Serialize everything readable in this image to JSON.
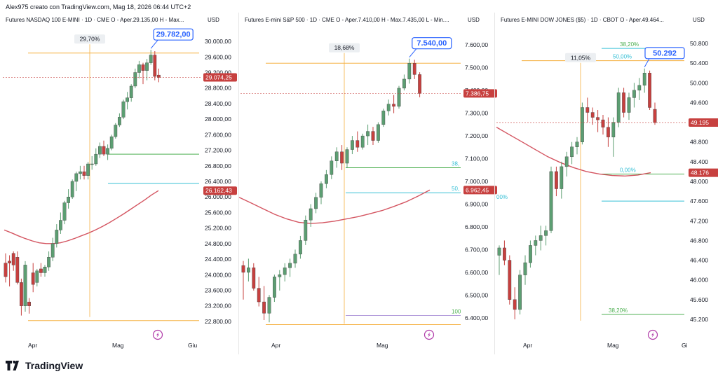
{
  "header": {
    "creator": "Alex975 creato con TradingView.com, Mag 18, 2026 06:44 UTC+2"
  },
  "brand": {
    "name": "TradingView"
  },
  "colors": {
    "up": "#5c9e72",
    "down": "#c7403f",
    "ma": "#d45561",
    "fib_green": "#4caf50",
    "fib_cyan": "#38c0d6",
    "orange": "#f5b041",
    "tag": "#2962ff"
  },
  "panels": [
    {
      "title": "Futures NASDAQ 100 E-MINI · 1D · CME  O - Aper.29.135,00  H - Max...",
      "currency": "USD",
      "yticks": [
        "30.000,00",
        "29.600,00",
        "29.200,00",
        "28.800,00",
        "28.400,00",
        "28.000,00",
        "27.600,00",
        "27.200,00",
        "26.800,00",
        "26.400,00",
        "26.000,00",
        "25.600,00",
        "25.200,00",
        "24.800,00",
        "24.400,00",
        "24.000,00",
        "23.600,00",
        "23.200,00",
        "22.800,00"
      ],
      "xticks": [
        "Apr",
        "Mag",
        "Giu"
      ],
      "range_label": "29,70%",
      "peak_label": "29.782,00",
      "price_tag": "29.074,25",
      "ma_tag": "26.162,43",
      "fib_labels": [],
      "icon": "lightning-icon"
    },
    {
      "title": "Futures E-mini S&P 500 · 1D · CME  O - Aper.7.410,00  H - Max.7.435,00  L - Min....",
      "currency": "USD",
      "yticks": [
        "7.600,00",
        "7.500,00",
        "7.400,00",
        "7.300,00",
        "7.200,00",
        "7.100,00",
        "7.000,00",
        "6.900,00",
        "6.800,00",
        "6.700,00",
        "6.600,00",
        "6.500,00",
        "6.400,00"
      ],
      "xticks": [
        "Apr",
        "Mag"
      ],
      "range_label": "18,68%",
      "peak_label": "7.540,00",
      "price_tag": "7.386,75",
      "ma_tag": "6.962,45",
      "fib_labels": [
        "38,",
        "50,",
        "100"
      ],
      "icon": "lightning-icon"
    },
    {
      "title": "Futures E-MINI DOW JONES ($5) · 1D · CBOT  O - Aper.49.464...",
      "currency": "USD",
      "yticks": [
        "50.800",
        "50.400",
        "50.000",
        "49.600",
        "49.200",
        "48.800",
        "48.400",
        "48.000",
        "47.600",
        "47.200",
        "46.800",
        "46.400",
        "46.000",
        "45.600",
        "45.200"
      ],
      "xticks": [
        "Apr",
        "Mag",
        "Gi"
      ],
      "range_label": "11,05%",
      "peak_label": "50.292",
      "price_tag": "49.195",
      "ma_tag": "48.176",
      "fib_labels": [
        "0,00%",
        "00%",
        "38,20%",
        "50,00%",
        "38,20%"
      ],
      "icon": "lightning-icon"
    }
  ],
  "chart_data": [
    {
      "type": "candlestick",
      "title": "Futures NASDAQ 100 E-MINI · 1D · CME",
      "ylim": [
        22600,
        30200
      ],
      "xlabels": [
        "Apr",
        "Mag",
        "Giu"
      ],
      "ohlc": [
        [
          24300,
          24550,
          23800,
          23950
        ],
        [
          24350,
          24500,
          23700,
          24300
        ],
        [
          24550,
          24600,
          24100,
          24250
        ],
        [
          24450,
          24600,
          23750,
          23800
        ],
        [
          23800,
          23900,
          22950,
          23200
        ],
        [
          23200,
          24350,
          23050,
          24250
        ],
        [
          23300,
          23400,
          23000,
          23200
        ],
        [
          24050,
          24300,
          23550,
          23750
        ],
        [
          23800,
          24150,
          23700,
          24100
        ],
        [
          24150,
          24300,
          23950,
          24050
        ],
        [
          24050,
          24250,
          23950,
          24200
        ],
        [
          24200,
          24600,
          24100,
          24450
        ],
        [
          24450,
          24950,
          24350,
          24800
        ],
        [
          24800,
          25300,
          24700,
          25150
        ],
        [
          25150,
          25600,
          25050,
          25400
        ],
        [
          25400,
          25900,
          25300,
          25850
        ],
        [
          25850,
          26200,
          25700,
          26000
        ],
        [
          26000,
          26450,
          25950,
          26400
        ],
        [
          26400,
          26650,
          26150,
          26600
        ],
        [
          26600,
          26800,
          26450,
          26650
        ],
        [
          26650,
          26800,
          26450,
          26550
        ],
        [
          26550,
          26900,
          26450,
          26850
        ],
        [
          26850,
          27050,
          26700,
          26850
        ],
        [
          26850,
          27250,
          26800,
          27100
        ],
        [
          27100,
          27400,
          27000,
          27300
        ],
        [
          27300,
          27450,
          27050,
          27100
        ],
        [
          27100,
          27350,
          26950,
          27250
        ],
        [
          27250,
          27600,
          27200,
          27550
        ],
        [
          27550,
          27900,
          27500,
          27850
        ],
        [
          27850,
          28150,
          27800,
          28050
        ],
        [
          28050,
          28500,
          28000,
          28450
        ],
        [
          28450,
          28700,
          28250,
          28550
        ],
        [
          28550,
          28900,
          28450,
          28850
        ],
        [
          28850,
          29300,
          28800,
          29200
        ],
        [
          29200,
          29500,
          29050,
          29400
        ],
        [
          29400,
          29450,
          28900,
          29250
        ],
        [
          29250,
          29550,
          29000,
          29450
        ],
        [
          29450,
          29782,
          29400,
          29650
        ],
        [
          29650,
          29750,
          29000,
          29100
        ],
        [
          29135,
          29300,
          28950,
          29074
        ]
      ],
      "ma": [
        25150,
        25080,
        25000,
        24930,
        24870,
        24820,
        24800,
        24800,
        24820,
        24870,
        24930,
        25000,
        25070,
        25150,
        25240,
        25340,
        25450,
        25560,
        25680,
        25800,
        25920,
        26050,
        26162
      ],
      "levels": [
        {
          "value": 27100,
          "color": "green"
        },
        {
          "value": 26350,
          "color": "cyan"
        },
        {
          "value": 22820,
          "color": "orange"
        },
        {
          "value": 29700,
          "color": "orange"
        }
      ]
    },
    {
      "type": "candlestick",
      "title": "Futures E-mini S&P 500 · 1D · CME",
      "ylim": [
        6350,
        7650
      ],
      "xlabels": [
        "Apr",
        "Mag"
      ],
      "ohlc": [
        [
          6630,
          6650,
          6480,
          6600
        ],
        [
          6600,
          6660,
          6560,
          6620
        ],
        [
          6620,
          6640,
          6520,
          6530
        ],
        [
          6530,
          6580,
          6450,
          6470
        ],
        [
          6470,
          6540,
          6390,
          6420
        ],
        [
          6420,
          6500,
          6380,
          6490
        ],
        [
          6490,
          6590,
          6470,
          6580
        ],
        [
          6580,
          6610,
          6520,
          6590
        ],
        [
          6590,
          6640,
          6560,
          6620
        ],
        [
          6620,
          6660,
          6580,
          6640
        ],
        [
          6640,
          6700,
          6620,
          6680
        ],
        [
          6680,
          6760,
          6660,
          6740
        ],
        [
          6740,
          6850,
          6720,
          6830
        ],
        [
          6830,
          6900,
          6800,
          6880
        ],
        [
          6880,
          6950,
          6860,
          6930
        ],
        [
          6930,
          7000,
          6900,
          6990
        ],
        [
          6990,
          7050,
          6970,
          7030
        ],
        [
          7030,
          7110,
          7010,
          7090
        ],
        [
          7090,
          7150,
          7060,
          7130
        ],
        [
          7130,
          7160,
          7050,
          7080
        ],
        [
          7080,
          7150,
          7060,
          7140
        ],
        [
          7140,
          7200,
          7120,
          7180
        ],
        [
          7180,
          7220,
          7130,
          7150
        ],
        [
          7150,
          7210,
          7140,
          7200
        ],
        [
          7200,
          7250,
          7160,
          7220
        ],
        [
          7220,
          7240,
          7160,
          7180
        ],
        [
          7180,
          7260,
          7170,
          7250
        ],
        [
          7250,
          7320,
          7240,
          7310
        ],
        [
          7310,
          7360,
          7290,
          7340
        ],
        [
          7340,
          7380,
          7300,
          7330
        ],
        [
          7330,
          7420,
          7320,
          7410
        ],
        [
          7410,
          7470,
          7400,
          7450
        ],
        [
          7450,
          7540,
          7430,
          7520
        ],
        [
          7520,
          7535,
          7450,
          7470
        ],
        [
          7470,
          7480,
          7370,
          7387
        ]
      ],
      "ma": [
        6930,
        6905,
        6880,
        6855,
        6835,
        6820,
        6815,
        6818,
        6825,
        6835,
        6845,
        6858,
        6872,
        6890,
        6910,
        6935,
        6962
      ],
      "levels": [
        {
          "value": 7060,
          "color": "green"
        },
        {
          "value": 6950,
          "color": "cyan"
        },
        {
          "value": 6410,
          "color": "purple"
        },
        {
          "value": 6370,
          "color": "orange"
        },
        {
          "value": 7520,
          "color": "orange"
        }
      ]
    },
    {
      "type": "candlestick",
      "title": "Futures E-MINI DOW JONES ($5) · CBOT",
      "ylim": [
        45000,
        51000
      ],
      "xlabels": [
        "Apr",
        "Mag",
        "Gi"
      ],
      "ohlc": [
        [
          46500,
          46700,
          46100,
          46650
        ],
        [
          46650,
          46800,
          46300,
          46400
        ],
        [
          46400,
          46500,
          45500,
          45600
        ],
        [
          45600,
          45850,
          45200,
          45400
        ],
        [
          45400,
          46200,
          45300,
          46100
        ],
        [
          46100,
          46500,
          45900,
          46350
        ],
        [
          46350,
          46800,
          46250,
          46700
        ],
        [
          46700,
          46900,
          46500,
          46800
        ],
        [
          46800,
          47100,
          46600,
          46900
        ],
        [
          46900,
          47100,
          46700,
          47000
        ],
        [
          47000,
          48300,
          46950,
          48200
        ],
        [
          48200,
          48300,
          47700,
          47850
        ],
        [
          47850,
          48400,
          47650,
          48300
        ],
        [
          48300,
          48600,
          48100,
          48500
        ],
        [
          48500,
          48800,
          48350,
          48700
        ],
        [
          48700,
          48900,
          48550,
          48800
        ],
        [
          48800,
          49600,
          48750,
          49500
        ],
        [
          49500,
          49700,
          49200,
          49400
        ],
        [
          49400,
          49500,
          49150,
          49300
        ],
        [
          49300,
          49450,
          49000,
          49250
        ],
        [
          49250,
          49350,
          48950,
          49100
        ],
        [
          49100,
          49300,
          48700,
          48900
        ],
        [
          48900,
          49300,
          48500,
          49200
        ],
        [
          49200,
          49900,
          49100,
          49800
        ],
        [
          49800,
          49900,
          49300,
          49400
        ],
        [
          49400,
          49800,
          49250,
          49700
        ],
        [
          49700,
          50000,
          49500,
          49850
        ],
        [
          49850,
          50100,
          49650,
          49950
        ],
        [
          49950,
          50292,
          49800,
          50200
        ],
        [
          50200,
          50250,
          49450,
          49500
        ],
        [
          49464,
          49600,
          49150,
          49195
        ]
      ],
      "ma": [
        49100,
        48950,
        48800,
        48650,
        48500,
        48380,
        48280,
        48200,
        48150,
        48120,
        48110,
        48130,
        48176
      ],
      "levels": [
        {
          "value": 48150,
          "color": "green"
        },
        {
          "value": 47600,
          "color": "cyan"
        },
        {
          "value": 45300,
          "color": "green"
        },
        {
          "value": 50450,
          "color": "orange"
        },
        {
          "value": 50700,
          "color": "cyan"
        }
      ]
    }
  ]
}
